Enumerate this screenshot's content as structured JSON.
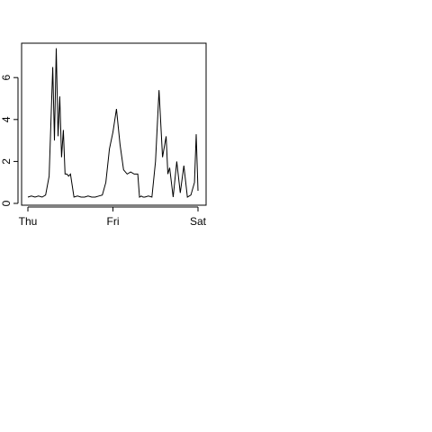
{
  "chart_data": {
    "type": "line",
    "title": "",
    "xlabel": "",
    "ylabel": "",
    "x_ticks": [
      "Thu",
      "Fri",
      "Sat"
    ],
    "xlim": [
      "Thu 00:00",
      "Sat 00:00"
    ],
    "y_ticks": [
      0,
      2,
      4,
      6
    ],
    "ylim": [
      0,
      7.5
    ],
    "grid": false,
    "legend": "none",
    "line_color": "#000000",
    "series": [
      {
        "x": [
          "Thu 00:00",
          "Thu 01:00",
          "Thu 02:00",
          "Thu 03:00",
          "Thu 04:00",
          "Thu 05:00",
          "Thu 06:00",
          "Thu 07:00",
          "Thu 07:30",
          "Thu 08:00",
          "Thu 08:30",
          "Thu 09:00",
          "Thu 09:30",
          "Thu 10:00",
          "Thu 10:30",
          "Thu 11:00",
          "Thu 11:30",
          "Thu 12:00",
          "Thu 13:00",
          "Thu 14:00",
          "Thu 15:00",
          "Thu 16:00",
          "Thu 17:00",
          "Thu 18:00",
          "Thu 19:00",
          "Thu 20:00",
          "Thu 21:00",
          "Thu 22:00",
          "Thu 23:00",
          "Fri 00:00",
          "Fri 01:00",
          "Fri 02:00",
          "Fri 03:00",
          "Fri 04:00",
          "Fri 05:00",
          "Fri 06:00",
          "Fri 07:00",
          "Fri 07:30",
          "Fri 08:00",
          "Fri 08:30",
          "Fri 09:00",
          "Fri 10:00",
          "Fri 11:00",
          "Fri 12:00",
          "Fri 13:00",
          "Fri 14:00",
          "Fri 15:00",
          "Fri 15:30",
          "Fri 16:00",
          "Fri 17:00",
          "Fri 18:00",
          "Fri 19:00",
          "Fri 20:00",
          "Fri 21:00",
          "Fri 22:00",
          "Fri 23:00",
          "Fri 23:30",
          "Sat 00:00"
        ],
        "y": [
          0.3,
          0.35,
          0.3,
          0.35,
          0.3,
          0.4,
          1.3,
          6.5,
          3.0,
          7.4,
          3.2,
          5.1,
          2.2,
          3.5,
          1.4,
          1.4,
          1.3,
          1.4,
          0.3,
          0.35,
          0.3,
          0.3,
          0.35,
          0.3,
          0.3,
          0.35,
          0.4,
          1.0,
          2.6,
          3.4,
          4.5,
          2.8,
          1.6,
          1.4,
          1.5,
          1.4,
          1.4,
          0.3,
          0.35,
          0.3,
          0.3,
          0.35,
          0.3,
          2.0,
          5.4,
          2.2,
          3.2,
          1.4,
          1.7,
          0.3,
          2.0,
          0.5,
          1.8,
          0.3,
          0.4,
          1.0,
          3.3,
          0.6
        ]
      }
    ]
  }
}
